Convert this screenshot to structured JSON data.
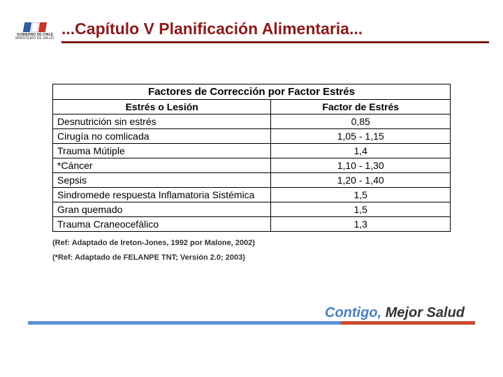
{
  "colors": {
    "title_color": "#8b1a1a",
    "title_underline": "#7a1616",
    "footer_bar_left": "#5a8fd6",
    "footer_bar_right": "#c94a2f",
    "slogan_contigo": "#4a7fc4",
    "slogan_mejor": "#333333",
    "flag_blue": "#2e5c9e",
    "flag_red": "#c4352a",
    "flag_white": "#ffffff"
  },
  "logo": {
    "line1": "GOBIERNO DE CHILE",
    "line2": "MINISTERIO DE SALUD"
  },
  "title": "...Capítulo V Planificación Alimentaria...",
  "table": {
    "main_header": "Factores de Corrección por Factor Estrés",
    "col1_header": "Estrés o Lesión",
    "col2_header": "Factor de Estrés",
    "rows": [
      {
        "label": "Desnutrición sin estrés",
        "value": "0,85"
      },
      {
        "label": "Cirugía no comlicada",
        "value": "1,05 - 1,15"
      },
      {
        "label": "Trauma Mútiple",
        "value": "1,4"
      },
      {
        "label": "*Cáncer",
        "value": "1,10 - 1,30"
      },
      {
        "label": "Sepsis",
        "value": "1,20 - 1,40"
      },
      {
        "label": "Sindromede respuesta Inflamatoria Sistémica",
        "value": "1,5"
      },
      {
        "label": "Gran quemado",
        "value": "1,5"
      },
      {
        "label": "Trauma Craneocefálico",
        "value": "1,3"
      }
    ]
  },
  "refs": [
    "(Ref: Adaptado de Ireton-Jones, 1992 por Malone, 2002)",
    "(*Ref: Adaptado de FELANPE TNT; Versión 2.0; 2003)"
  ],
  "slogan": {
    "part1": "Contigo,",
    "part2": " Mejor Salud"
  }
}
